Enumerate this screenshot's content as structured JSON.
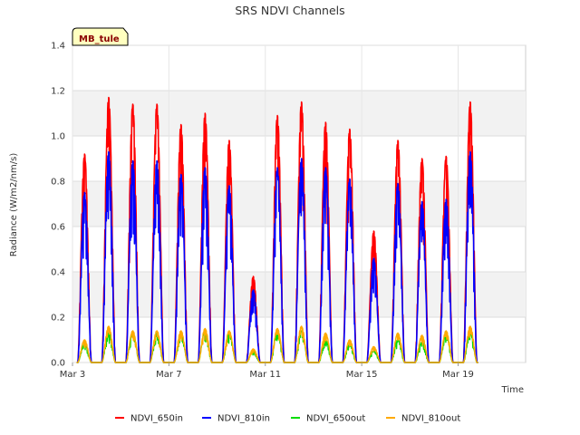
{
  "chart_data": {
    "type": "line",
    "title": "SRS NDVI Channels",
    "xlabel": "Time",
    "ylabel": "Radiance (W/m2/nm/s)",
    "site_label": "MB_tule",
    "ylim": [
      0,
      1.4
    ],
    "yticks": [
      "0.0",
      "0.2",
      "0.4",
      "0.6",
      "0.8",
      "1.0",
      "1.2",
      "1.4"
    ],
    "xlim_days": [
      3,
      21.8
    ],
    "xticks": [
      {
        "label": "Mar 3",
        "day": 3
      },
      {
        "label": "Mar 7",
        "day": 7
      },
      {
        "label": "Mar 11",
        "day": 11
      },
      {
        "label": "Mar 15",
        "day": 15
      },
      {
        "label": "Mar 19",
        "day": 19
      }
    ],
    "legend_position": "bottom",
    "days": [
      3.5,
      4.5,
      5.5,
      6.5,
      7.5,
      8.5,
      9.5,
      10.5,
      11.5,
      12.5,
      13.5,
      14.5,
      15.5,
      16.5,
      17.5,
      18.5,
      19.5
    ],
    "series": [
      {
        "name": "NDVI_650in",
        "color": "#ff0000",
        "daily_peak": [
          0.92,
          1.17,
          1.14,
          1.14,
          1.05,
          1.1,
          0.98,
          0.38,
          1.09,
          1.15,
          1.06,
          1.03,
          0.58,
          0.98,
          0.9,
          0.91,
          1.15
        ]
      },
      {
        "name": "NDVI_810in",
        "color": "#0000ff",
        "daily_peak": [
          0.75,
          0.93,
          0.89,
          0.89,
          0.83,
          0.86,
          0.78,
          0.32,
          0.86,
          0.9,
          0.86,
          0.81,
          0.46,
          0.79,
          0.71,
          0.72,
          0.93
        ]
      },
      {
        "name": "NDVI_650out",
        "color": "#00dd00",
        "daily_peak": [
          0.08,
          0.13,
          0.13,
          0.13,
          0.13,
          0.14,
          0.13,
          0.05,
          0.14,
          0.14,
          0.1,
          0.08,
          0.05,
          0.1,
          0.09,
          0.12,
          0.13
        ]
      },
      {
        "name": "NDVI_810out",
        "color": "#ffaa00",
        "daily_peak": [
          0.1,
          0.16,
          0.14,
          0.14,
          0.14,
          0.15,
          0.14,
          0.06,
          0.15,
          0.16,
          0.13,
          0.1,
          0.07,
          0.13,
          0.12,
          0.14,
          0.16
        ]
      }
    ]
  }
}
